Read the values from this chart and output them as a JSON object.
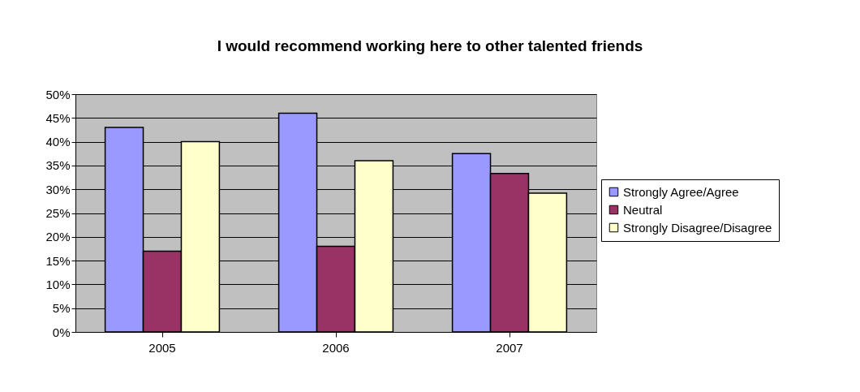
{
  "chart_data": {
    "type": "bar",
    "title": "I would recommend working here to other talented friends",
    "categories": [
      "2005",
      "2006",
      "2007"
    ],
    "series": [
      {
        "name": "Strongly Agree/Agree",
        "color": "#9999ff",
        "values": [
          43,
          46,
          37.5
        ]
      },
      {
        "name": "Neutral",
        "color": "#993366",
        "values": [
          17,
          18,
          33.3
        ]
      },
      {
        "name": "Strongly Disagree/Disagree",
        "color": "#ffffcc",
        "values": [
          40,
          36,
          29.2
        ]
      }
    ],
    "ylim": [
      0,
      50
    ],
    "yticks": [
      {
        "value": 0,
        "label": "0%"
      },
      {
        "value": 5,
        "label": "5%"
      },
      {
        "value": 10,
        "label": "10%"
      },
      {
        "value": 15,
        "label": "15%"
      },
      {
        "value": 20,
        "label": "20%"
      },
      {
        "value": 25,
        "label": "25%"
      },
      {
        "value": 30,
        "label": "30%"
      },
      {
        "value": 35,
        "label": "35%"
      },
      {
        "value": 40,
        "label": "40%"
      },
      {
        "value": 45,
        "label": "45%"
      },
      {
        "value": 50,
        "label": "50%"
      }
    ],
    "grid": "y",
    "legend": "right"
  }
}
